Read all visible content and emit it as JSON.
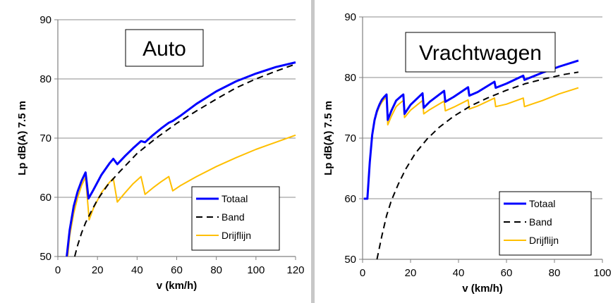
{
  "chart_data": [
    {
      "type": "line",
      "title": "Auto",
      "xlabel": "v (km/h)",
      "ylabel": "Lp dB(A) 7.5 m",
      "xlim": [
        0,
        120
      ],
      "ylim": [
        50,
        90
      ],
      "xticks": [
        "0",
        "20",
        "40",
        "60",
        "80",
        "100",
        "120"
      ],
      "yticks": [
        "50",
        "60",
        "70",
        "80",
        "90"
      ],
      "grid": "horizontal",
      "legend": "bottom-right",
      "series": [
        {
          "name": "Totaal",
          "color": "#0000ff",
          "dash": "solid",
          "x": [
            4.5,
            6,
            8,
            10,
            12,
            14,
            15.5,
            18,
            22,
            26,
            28,
            30,
            34,
            38,
            42,
            44,
            48,
            52,
            56,
            58,
            62,
            70,
            80,
            90,
            100,
            110,
            120
          ],
          "y": [
            50,
            54.5,
            58.5,
            61,
            62.8,
            64.2,
            59.8,
            61.3,
            63.8,
            65.7,
            66.5,
            65.6,
            67,
            68.3,
            69.5,
            69.3,
            70.5,
            71.6,
            72.6,
            72.9,
            73.8,
            75.8,
            77.9,
            79.6,
            80.9,
            82,
            82.8
          ]
        },
        {
          "name": "Band",
          "color": "#000000",
          "dash": "dashed",
          "x": [
            8.5,
            10,
            12,
            14,
            17,
            20,
            25,
            30,
            40,
            50,
            60,
            70,
            80,
            90,
            100,
            110,
            120
          ],
          "y": [
            50,
            51.9,
            54,
            55.7,
            57.7,
            59.6,
            62,
            63.9,
            67.4,
            70.1,
            72.5,
            74.6,
            76.6,
            78.5,
            80,
            81.3,
            82.5
          ]
        },
        {
          "name": "Drijflijn",
          "color": "#ffbf00",
          "dash": "solid",
          "x": [
            5,
            6,
            8,
            10,
            12,
            14,
            15.8,
            18,
            22,
            26,
            28,
            30,
            34,
            38,
            42,
            44,
            48,
            52,
            56,
            58,
            62,
            70,
            80,
            90,
            100,
            110,
            120
          ],
          "y": [
            50,
            53.5,
            57.3,
            60,
            62,
            63.4,
            56.2,
            58.2,
            60.8,
            62.5,
            63.2,
            59.2,
            60.8,
            62.3,
            63.5,
            60.5,
            61.6,
            62.6,
            63.5,
            61.1,
            62,
            63.5,
            65.2,
            66.7,
            68.1,
            69.3,
            70.5
          ]
        }
      ]
    },
    {
      "type": "line",
      "title": "Vrachtwagen",
      "xlabel": "v (km/h)",
      "ylabel": "Lp dB(A) 7.5 m",
      "xlim": [
        0,
        100
      ],
      "ylim": [
        50,
        90
      ],
      "xticks": [
        "0",
        "20",
        "40",
        "60",
        "80",
        "100"
      ],
      "yticks": [
        "50",
        "60",
        "70",
        "80",
        "90"
      ],
      "grid": "horizontal",
      "legend": "bottom-right",
      "series": [
        {
          "name": "Totaal",
          "color": "#0000ff",
          "dash": "solid",
          "x": [
            0.5,
            2,
            3,
            4,
            5,
            6,
            7,
            8,
            9,
            10,
            10.5,
            12,
            14,
            16,
            17,
            17.5,
            20,
            25,
            25.5,
            28,
            34,
            34.5,
            38,
            44,
            44.5,
            48,
            55,
            55.5,
            60,
            67,
            67.5,
            75,
            82,
            90
          ],
          "y": [
            60,
            60,
            66,
            70.5,
            73,
            74.5,
            75.5,
            76.3,
            76.8,
            77.2,
            73,
            74.5,
            76.2,
            76.9,
            77.2,
            74,
            75.5,
            77.4,
            75,
            76,
            77.8,
            76,
            76.8,
            78.4,
            77,
            77.6,
            79.3,
            78.3,
            79,
            80.3,
            79.6,
            80.8,
            81.8,
            82.8
          ]
        },
        {
          "name": "Band",
          "color": "#000000",
          "dash": "dashed",
          "x": [
            6,
            8,
            10,
            12,
            15,
            18,
            22,
            27,
            32,
            38,
            45,
            52,
            60,
            68,
            76,
            84,
            90
          ],
          "y": [
            50,
            53.8,
            57.2,
            59.7,
            62.5,
            64.9,
            67.5,
            69.9,
            71.8,
            73.6,
            75.3,
            76.6,
            77.9,
            79,
            79.8,
            80.5,
            80.9
          ]
        },
        {
          "name": "Drijflijn",
          "color": "#ffbf00",
          "dash": "solid",
          "x": [
            0.5,
            2,
            3,
            4,
            5,
            6,
            7,
            8,
            9,
            10,
            10.5,
            12,
            14,
            16,
            17,
            17.5,
            20,
            25,
            25.5,
            28,
            34,
            34.5,
            38,
            44,
            44.5,
            48,
            55,
            55.5,
            60,
            67,
            67.5,
            75,
            82,
            90
          ],
          "y": [
            60,
            60,
            66,
            70.3,
            72.8,
            74.2,
            75.2,
            75.9,
            76.4,
            76.8,
            72.2,
            73.6,
            75.2,
            75.9,
            76.2,
            73.4,
            74.6,
            76.2,
            74,
            74.7,
            76.1,
            74.5,
            75.1,
            76.3,
            74.8,
            75.3,
            76.6,
            75.2,
            75.6,
            76.6,
            75.2,
            76.2,
            77.3,
            78.3
          ]
        }
      ]
    }
  ]
}
